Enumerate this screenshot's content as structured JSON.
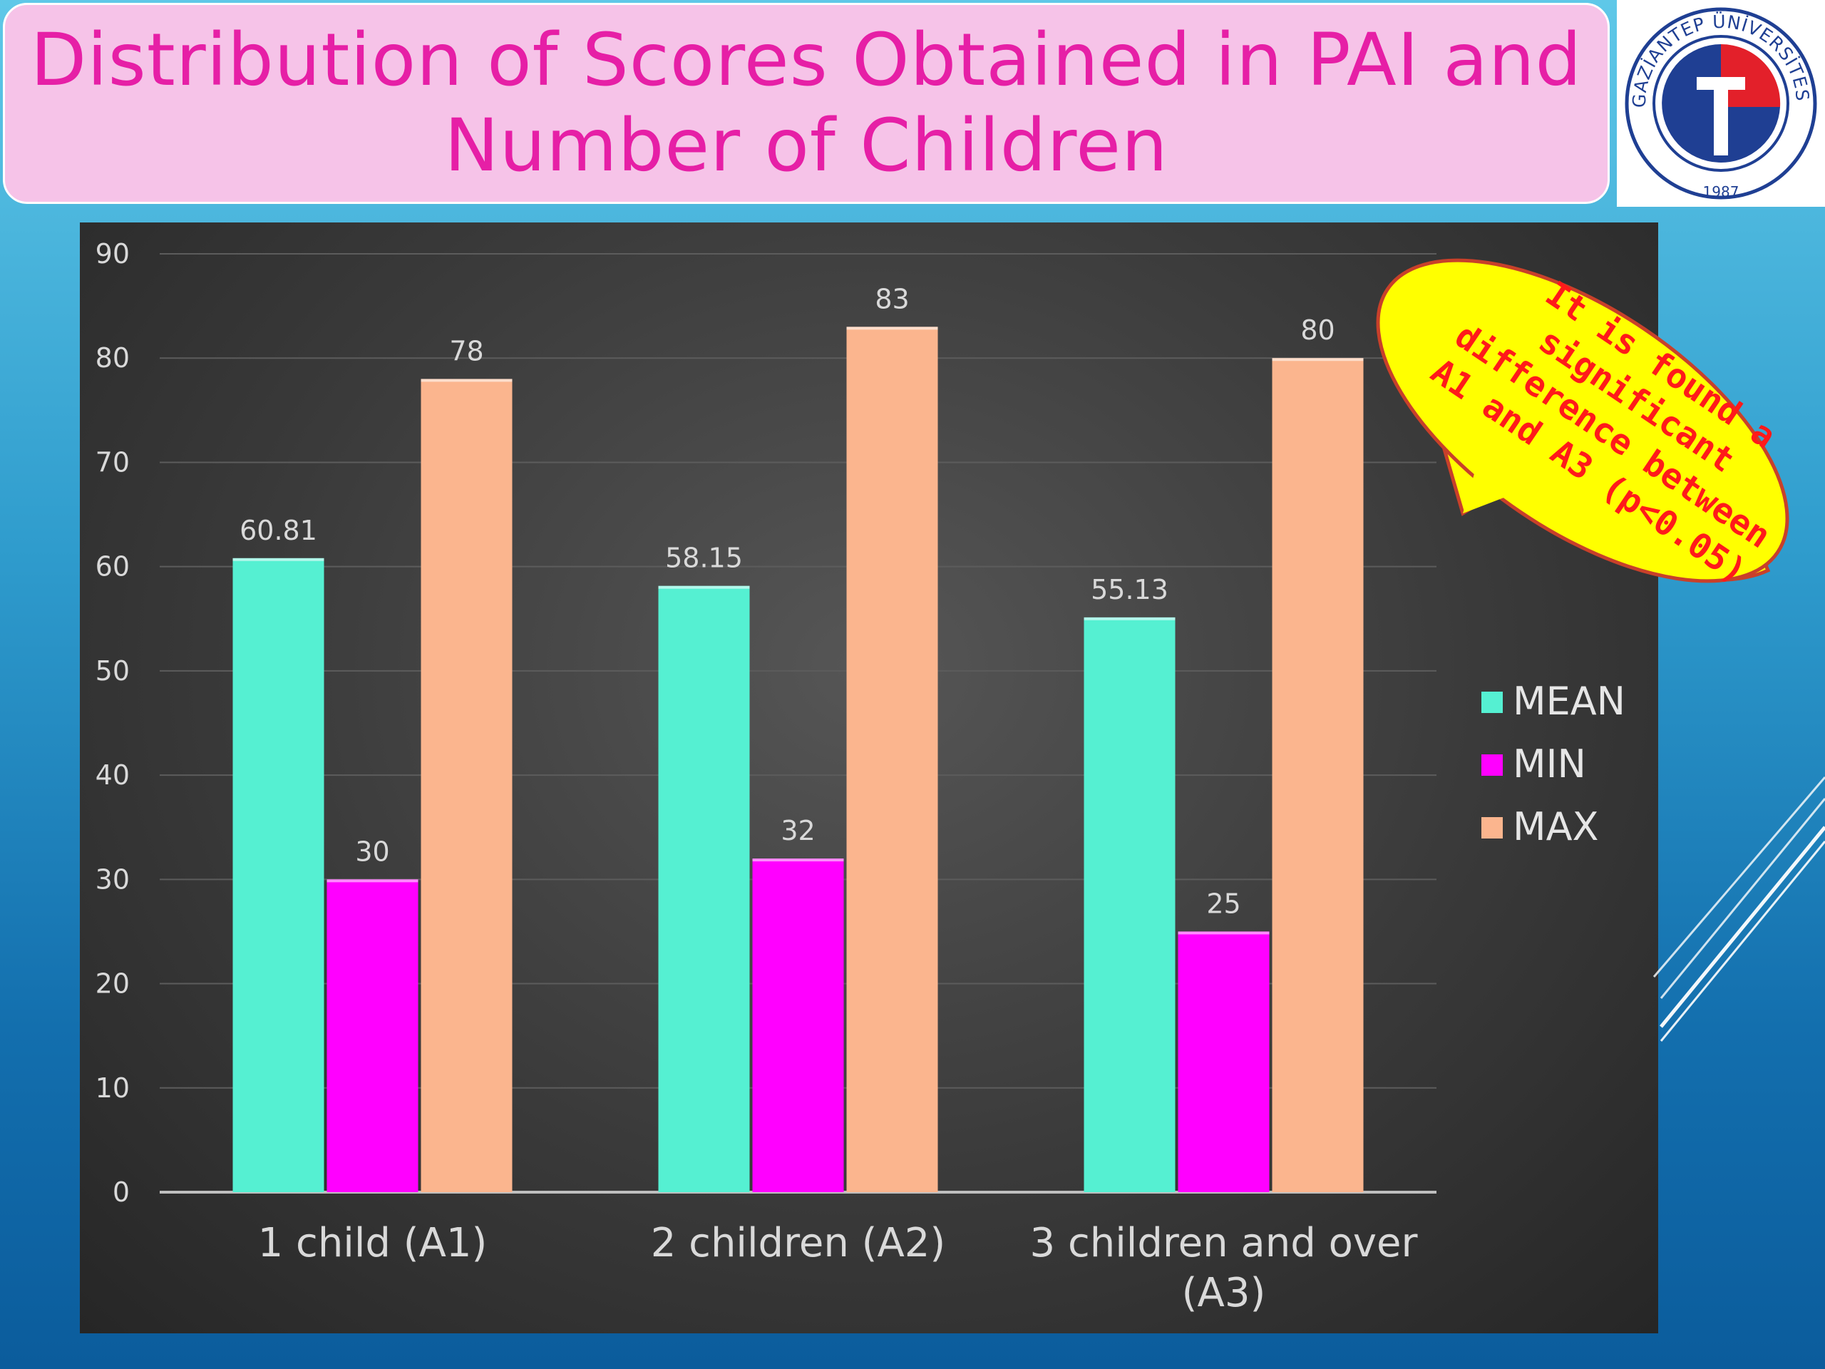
{
  "title": "Distribution of Scores Obtained in PAI and Number of Children",
  "title_lines": [
    "Distribution of Scores Obtained in PAI and",
    "Number of Children"
  ],
  "logo": {
    "text_top": "GAZİANTEP ÜNİVERSİTESİ",
    "year": "1987",
    "colors": {
      "blue": "#1f3f93",
      "red": "#e3202a"
    }
  },
  "callout": {
    "lines": [
      "It is found a",
      "significant",
      "difference between",
      "A1 and A3 (p<0.05)"
    ],
    "fill": "#ffff00",
    "border": "#c8402a",
    "text_color": "#ff1a1a"
  },
  "colors": {
    "MEAN": "#55f0d2",
    "MIN": "#ff00ff",
    "MAX": "#fbb58e"
  },
  "chart_data": {
    "type": "bar",
    "title": "",
    "xlabel": "",
    "ylabel": "",
    "categories": [
      "1 child (A1)",
      "2 children (A2)",
      "3 children and over (A3)"
    ],
    "category_lines": [
      [
        "1 child (A1)"
      ],
      [
        "2 children (A2)"
      ],
      [
        "3 children and over",
        "(A3)"
      ]
    ],
    "series": [
      {
        "name": "MEAN",
        "values": [
          60.81,
          58.15,
          55.13
        ],
        "labels": [
          "60.81",
          "58.15",
          "55.13"
        ]
      },
      {
        "name": "MIN",
        "values": [
          30,
          32,
          25
        ],
        "labels": [
          "30",
          "32",
          "25"
        ]
      },
      {
        "name": "MAX",
        "values": [
          78,
          83,
          80
        ],
        "labels": [
          "78",
          "83",
          "80"
        ]
      }
    ],
    "ylim": [
      0,
      90
    ],
    "yticks": [
      0,
      10,
      20,
      30,
      40,
      50,
      60,
      70,
      80,
      90
    ],
    "grid": true,
    "legend_position": "right"
  }
}
